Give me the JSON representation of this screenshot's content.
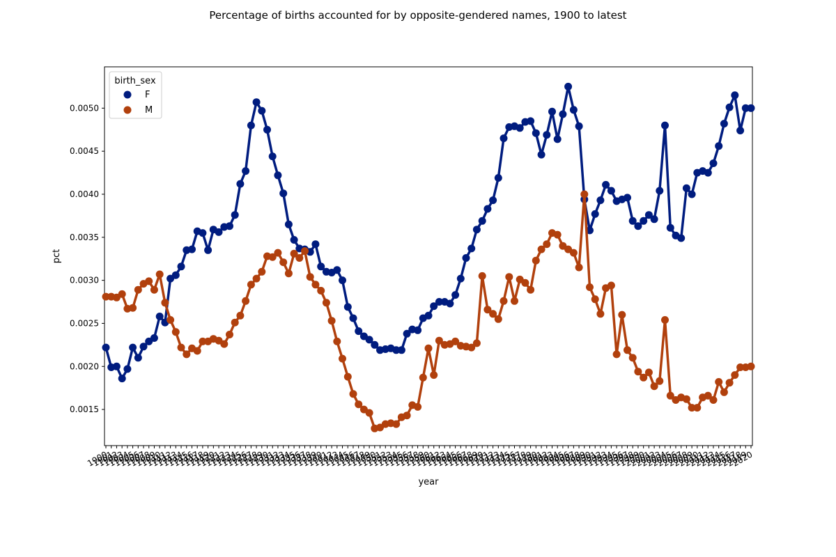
{
  "chart_data": {
    "type": "line",
    "title": "Percentage of births accounted for by opposite-gendered names, 1900 to latest",
    "xlabel": "year",
    "ylabel": "pct",
    "x": [
      1900,
      1901,
      1902,
      1903,
      1904,
      1905,
      1906,
      1907,
      1908,
      1909,
      1910,
      1911,
      1912,
      1913,
      1914,
      1915,
      1916,
      1917,
      1918,
      1919,
      1920,
      1921,
      1922,
      1923,
      1924,
      1925,
      1926,
      1927,
      1928,
      1929,
      1930,
      1931,
      1932,
      1933,
      1934,
      1935,
      1936,
      1937,
      1938,
      1939,
      1940,
      1941,
      1942,
      1943,
      1944,
      1945,
      1946,
      1947,
      1948,
      1949,
      1950,
      1951,
      1952,
      1953,
      1954,
      1955,
      1956,
      1957,
      1958,
      1959,
      1960,
      1961,
      1962,
      1963,
      1964,
      1965,
      1966,
      1967,
      1968,
      1969,
      1970,
      1971,
      1972,
      1973,
      1974,
      1975,
      1976,
      1977,
      1978,
      1979,
      1980,
      1981,
      1982,
      1983,
      1984,
      1985,
      1986,
      1987,
      1988,
      1989,
      1990,
      1991,
      1992,
      1993,
      1994,
      1995,
      1996,
      1997,
      1998,
      1999,
      2000,
      2001,
      2002,
      2003,
      2004,
      2005,
      2006,
      2007,
      2008,
      2009,
      2010,
      2011,
      2012,
      2013,
      2014,
      2015,
      2016,
      2017,
      2018,
      2019,
      2020
    ],
    "xlim": [
      1900,
      2020
    ],
    "ylim": [
      0.00108,
      0.00548
    ],
    "yticks": [
      0.0015,
      0.002,
      0.0025,
      0.003,
      0.0035,
      0.004,
      0.0045,
      0.005
    ],
    "ytick_labels": [
      "0.0015",
      "0.0020",
      "0.0025",
      "0.0030",
      "0.0035",
      "0.0040",
      "0.0045",
      "0.0050"
    ],
    "legend": {
      "title": "birth_sex",
      "placement": "top-left"
    },
    "series": [
      {
        "name": "F",
        "color": "#001c7f",
        "values": [
          0.00222,
          0.00199,
          0.002,
          0.00186,
          0.00197,
          0.00222,
          0.0021,
          0.00223,
          0.00229,
          0.00233,
          0.00258,
          0.00251,
          0.00302,
          0.00306,
          0.00316,
          0.00335,
          0.00336,
          0.00357,
          0.00355,
          0.00335,
          0.00359,
          0.00356,
          0.00362,
          0.00363,
          0.00376,
          0.00412,
          0.00427,
          0.0048,
          0.00507,
          0.00497,
          0.00475,
          0.00444,
          0.00422,
          0.00401,
          0.00365,
          0.00347,
          0.00337,
          0.00336,
          0.00333,
          0.00342,
          0.00316,
          0.0031,
          0.00309,
          0.00312,
          0.003,
          0.00269,
          0.00256,
          0.00241,
          0.00235,
          0.00231,
          0.00225,
          0.00219,
          0.0022,
          0.00221,
          0.00219,
          0.00219,
          0.00238,
          0.00243,
          0.00242,
          0.00256,
          0.00259,
          0.0027,
          0.00275,
          0.00275,
          0.00273,
          0.00283,
          0.00302,
          0.00326,
          0.00337,
          0.00359,
          0.00369,
          0.00383,
          0.00393,
          0.00419,
          0.00465,
          0.00478,
          0.00479,
          0.00477,
          0.00484,
          0.00485,
          0.00471,
          0.00446,
          0.00469,
          0.00496,
          0.00464,
          0.00493,
          0.00525,
          0.00498,
          0.00479,
          0.00394,
          0.00358,
          0.00377,
          0.00393,
          0.00411,
          0.00404,
          0.00392,
          0.00394,
          0.00396,
          0.00369,
          0.00363,
          0.00369,
          0.00376,
          0.00371,
          0.00404,
          0.0048,
          0.00361,
          0.00352,
          0.00349,
          0.00407,
          0.004,
          0.00425,
          0.00427,
          0.00425,
          0.00436,
          0.00456,
          0.00482,
          0.00501,
          0.00515,
          0.00474,
          0.005,
          0.005
        ]
      },
      {
        "name": "M",
        "color": "#b1400d",
        "values": [
          0.00281,
          0.00281,
          0.0028,
          0.00284,
          0.00267,
          0.00268,
          0.00289,
          0.00296,
          0.00299,
          0.00289,
          0.00307,
          0.00274,
          0.00254,
          0.0024,
          0.00222,
          0.00214,
          0.00221,
          0.00218,
          0.00229,
          0.00229,
          0.00232,
          0.0023,
          0.00226,
          0.00237,
          0.00251,
          0.00259,
          0.00276,
          0.00295,
          0.00302,
          0.0031,
          0.00328,
          0.00327,
          0.00332,
          0.00321,
          0.00308,
          0.00331,
          0.00326,
          0.00334,
          0.00304,
          0.00295,
          0.00288,
          0.00274,
          0.00253,
          0.00229,
          0.00209,
          0.00188,
          0.00168,
          0.00156,
          0.0015,
          0.00146,
          0.00128,
          0.00129,
          0.00133,
          0.00134,
          0.00133,
          0.00141,
          0.00143,
          0.00155,
          0.00153,
          0.00187,
          0.00221,
          0.0019,
          0.0023,
          0.00225,
          0.00226,
          0.00229,
          0.00224,
          0.00223,
          0.00222,
          0.00227,
          0.00305,
          0.00266,
          0.00261,
          0.00255,
          0.00276,
          0.00304,
          0.00276,
          0.00301,
          0.00297,
          0.00289,
          0.00323,
          0.00336,
          0.00342,
          0.00355,
          0.00353,
          0.0034,
          0.00336,
          0.00332,
          0.00315,
          0.004,
          0.00292,
          0.00278,
          0.00261,
          0.00291,
          0.00294,
          0.00214,
          0.0026,
          0.00219,
          0.0021,
          0.00194,
          0.00187,
          0.00193,
          0.00177,
          0.00183,
          0.00254,
          0.00166,
          0.00161,
          0.00164,
          0.00162,
          0.00152,
          0.00152,
          0.00164,
          0.00166,
          0.00161,
          0.00182,
          0.0017,
          0.00181,
          0.0019,
          0.00199,
          0.00199,
          0.002
        ]
      }
    ]
  }
}
